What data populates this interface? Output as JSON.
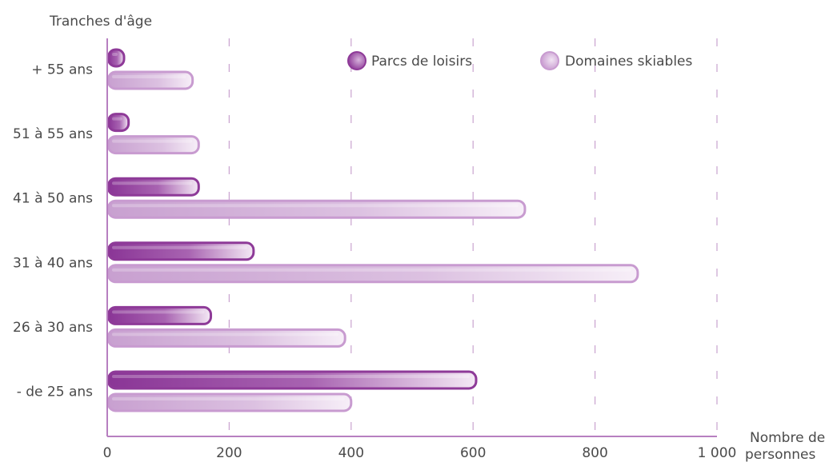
{
  "chart_data": {
    "type": "bar",
    "orientation": "horizontal",
    "ylabel": "Tranches d'âge",
    "xlabel": "Nombre de personnes",
    "xlabel_lines": [
      "Nombre de",
      "personnes"
    ],
    "categories": [
      "+ 55 ans",
      "51 à 55 ans",
      "41 à 50 ans",
      "31 à 40 ans",
      "26 à 30 ans",
      "- de 25 ans"
    ],
    "series": [
      {
        "name": "Parcs de loisirs",
        "color": "#8e3a98",
        "values": [
          15,
          35,
          150,
          240,
          170,
          605
        ]
      },
      {
        "name": "Domaines skiables",
        "color": "#c89bd0",
        "values": [
          140,
          150,
          685,
          870,
          390,
          400
        ]
      }
    ],
    "xlim": [
      0,
      1000
    ],
    "xticks": [
      0,
      200,
      400,
      600,
      800,
      1000
    ],
    "xtick_labels": [
      "0",
      "200",
      "400",
      "600",
      "800",
      "1 000"
    ],
    "grid": "vertical dashed",
    "legend_position": "top-right"
  }
}
